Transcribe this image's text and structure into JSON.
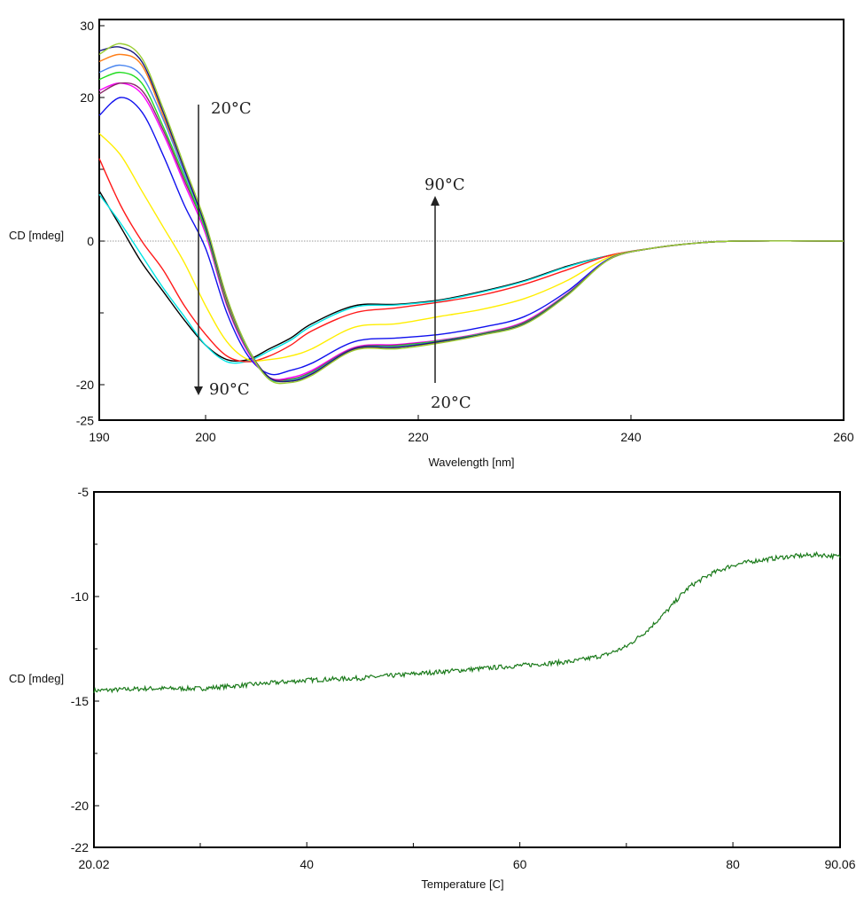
{
  "chart_data": [
    {
      "type": "line",
      "xlabel": "Wavelength [nm]",
      "ylabel": "CD [mdeg]",
      "xlim": [
        190,
        260
      ],
      "ylim": [
        -25,
        30
      ],
      "xticks": [
        "190",
        "200",
        "220",
        "240",
        "260"
      ],
      "xtick_values": [
        190,
        200,
        220,
        240,
        260
      ],
      "yticks": [
        "30",
        "20",
        "0",
        "-20",
        "-25"
      ],
      "ytick_values": [
        30,
        20,
        0,
        -20,
        -25
      ],
      "grid": false,
      "zero_line": true,
      "annotations": [
        {
          "text": "20°C",
          "arrow": "down",
          "to_text": "90°C",
          "x": 199.3
        },
        {
          "text": "20°C",
          "arrow": "up",
          "to_text": "90°C",
          "x": 221.5
        }
      ],
      "x": [
        190,
        192,
        194,
        196,
        198,
        200,
        202,
        204,
        206,
        208,
        210,
        214,
        218,
        222,
        226,
        230,
        234,
        238,
        242,
        246,
        250,
        260
      ],
      "series": [
        {
          "color": "#000000",
          "values": [
            7,
            2,
            -3,
            -7,
            -11,
            -14.5,
            -16.5,
            -16.5,
            -15,
            -13.5,
            -11.5,
            -9,
            -8.8,
            -8.2,
            -7,
            -5.5,
            -3.5,
            -2,
            -1,
            -0.3,
            0,
            0
          ]
        },
        {
          "color": "#00e5e5",
          "values": [
            6.5,
            2.5,
            -2,
            -6.5,
            -10.5,
            -14.5,
            -16.8,
            -16.7,
            -15.3,
            -13.8,
            -11.8,
            -9.2,
            -8.9,
            -8.3,
            -7.1,
            -5.6,
            -3.6,
            -2,
            -1,
            -0.3,
            0,
            0
          ]
        },
        {
          "color": "#ff1a1a",
          "values": [
            11.5,
            5,
            0,
            -4,
            -9,
            -13,
            -16,
            -16.8,
            -16,
            -14.5,
            -12.5,
            -10,
            -9.3,
            -8.5,
            -7.5,
            -6,
            -4,
            -2,
            -1,
            -0.3,
            0,
            0
          ]
        },
        {
          "color": "#ffee00",
          "values": [
            15,
            12,
            7,
            2,
            -3,
            -9,
            -14,
            -16.5,
            -16.5,
            -16,
            -15,
            -12,
            -11.5,
            -10.5,
            -9.5,
            -8,
            -5.5,
            -2.2,
            -1,
            -0.3,
            0,
            0
          ]
        },
        {
          "color": "#1010ee",
          "values": [
            17.5,
            20,
            18,
            12,
            5,
            -1,
            -10,
            -16,
            -18.5,
            -18,
            -17,
            -14,
            -13.5,
            -13,
            -12,
            -10.5,
            -7,
            -2.4,
            -1,
            -0.3,
            0,
            0
          ]
        },
        {
          "color": "#ff00ff",
          "values": [
            21,
            22,
            20.5,
            15,
            8,
            1,
            -9,
            -15.5,
            -19,
            -19,
            -18,
            -14.8,
            -14.4,
            -13.8,
            -12.8,
            -11.2,
            -7.3,
            -2.5,
            -1,
            -0.3,
            0,
            0
          ]
        },
        {
          "color": "#8b2a6b",
          "values": [
            20.5,
            22,
            21,
            15.5,
            8.5,
            1.5,
            -8.8,
            -15.3,
            -19,
            -19.2,
            -18.2,
            -14.9,
            -14.5,
            -13.9,
            -12.9,
            -11.3,
            -7.4,
            -2.5,
            -1,
            -0.3,
            0,
            0
          ]
        },
        {
          "color": "#22dd22",
          "values": [
            22.5,
            23.5,
            22,
            16,
            9,
            1.5,
            -8.5,
            -15.2,
            -19.2,
            -19.3,
            -18.3,
            -15,
            -14.6,
            -13.9,
            -12.9,
            -11.4,
            -7.4,
            -2.5,
            -1,
            -0.3,
            0,
            0
          ]
        },
        {
          "color": "#4a86f0",
          "values": [
            23.5,
            24.5,
            23,
            17,
            9.5,
            2,
            -8.3,
            -15.1,
            -19.1,
            -19.4,
            -18.4,
            -15,
            -14.7,
            -14,
            -13,
            -11.5,
            -7.5,
            -2.5,
            -1,
            -0.3,
            0,
            0
          ]
        },
        {
          "color": "#ff7f1a",
          "values": [
            25,
            26,
            24.5,
            17.5,
            10,
            2,
            -8.2,
            -15,
            -19,
            -19.5,
            -18.5,
            -15.1,
            -14.8,
            -14.1,
            -13,
            -11.5,
            -7.5,
            -2.5,
            -1,
            -0.3,
            0,
            0
          ]
        },
        {
          "color": "#1a1a80",
          "values": [
            26.5,
            27,
            25,
            18,
            10,
            2,
            -8,
            -15,
            -19,
            -19.5,
            -18.5,
            -15,
            -14.8,
            -14,
            -13,
            -11.5,
            -7.5,
            -2.5,
            -1,
            -0.3,
            0,
            0
          ]
        },
        {
          "color": "#9acd32",
          "values": [
            26,
            27.5,
            25.5,
            18.5,
            10.5,
            2.5,
            -7.8,
            -15,
            -19.3,
            -19.7,
            -18.7,
            -15.2,
            -15,
            -14.2,
            -13.1,
            -11.6,
            -7.6,
            -2.5,
            -1,
            -0.3,
            0,
            0
          ]
        }
      ]
    },
    {
      "type": "line",
      "xlabel": "Temperature [C]",
      "ylabel": "CD [mdeg]",
      "xlim": [
        20.02,
        90.06
      ],
      "ylim": [
        -22,
        -5
      ],
      "xticks": [
        "20.02",
        "40",
        "60",
        "80",
        "90.06"
      ],
      "xtick_values": [
        20.02,
        40,
        60,
        80,
        90.06
      ],
      "yticks": [
        "-5",
        "-10",
        "-15",
        "-20",
        "-22"
      ],
      "ytick_values": [
        -5,
        -10,
        -15,
        -20,
        -22
      ],
      "grid": false,
      "series": [
        {
          "color": "#1a7a1a",
          "x": [
            20.02,
            25,
            30,
            35,
            40,
            45,
            50,
            55,
            60,
            65,
            68,
            70,
            72,
            74,
            75,
            76,
            78,
            80,
            82,
            85,
            88,
            90.06
          ],
          "values": [
            -14.5,
            -14.4,
            -14.4,
            -14.2,
            -14.0,
            -13.9,
            -13.7,
            -13.5,
            -13.3,
            -13.1,
            -12.8,
            -12.4,
            -11.6,
            -10.6,
            -10.0,
            -9.5,
            -8.9,
            -8.5,
            -8.3,
            -8.1,
            -8.0,
            -8.1
          ]
        }
      ]
    }
  ]
}
